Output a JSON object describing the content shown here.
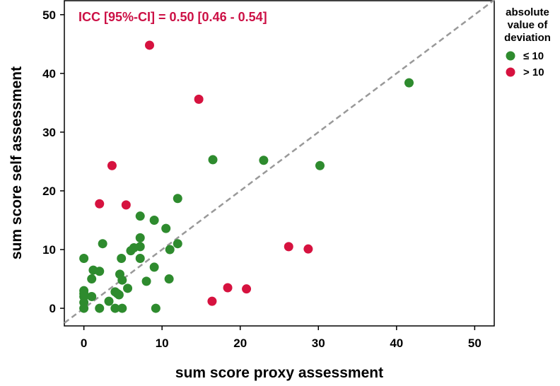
{
  "chart_data": {
    "type": "scatter",
    "xlabel": "sum score proxy assessment",
    "ylabel": "sum score self assessment",
    "xlim": [
      -2.5,
      52.5
    ],
    "ylim": [
      -3,
      52.5
    ],
    "xticks": [
      0,
      10,
      20,
      30,
      40,
      50
    ],
    "yticks": [
      0,
      10,
      20,
      30,
      40,
      50
    ],
    "grid": false,
    "reference_line": {
      "style": "dashed",
      "slope": 1,
      "intercept": 0,
      "color": "#999999"
    },
    "annotation": {
      "text": "ICC [95%-CI] = 0.50 [0.46 - 0.54]",
      "color": "#cc1045"
    },
    "legend": {
      "title_lines": [
        "absolute",
        "value of",
        "deviation"
      ],
      "placement": "right",
      "items": [
        {
          "label": "≤ 10",
          "color": "#2e8b2e"
        },
        {
          "label": "> 10",
          "color": "#d6123f"
        }
      ]
    },
    "series": [
      {
        "name": "≤ 10",
        "color": "#2e8b2e",
        "points": [
          [
            0,
            8.5
          ],
          [
            0,
            3
          ],
          [
            0,
            2.5
          ],
          [
            0,
            2
          ],
          [
            0,
            1
          ],
          [
            0,
            0
          ],
          [
            1,
            2
          ],
          [
            1,
            5
          ],
          [
            1.2,
            6.5
          ],
          [
            2,
            6.3
          ],
          [
            2,
            0
          ],
          [
            2.4,
            11
          ],
          [
            3.2,
            1.2
          ],
          [
            4,
            2.8
          ],
          [
            4,
            0
          ],
          [
            4.3,
            2.5
          ],
          [
            4.5,
            2.3
          ],
          [
            4.6,
            5.8
          ],
          [
            4.8,
            8.5
          ],
          [
            4.9,
            4.8
          ],
          [
            4.9,
            0
          ],
          [
            5.6,
            3.4
          ],
          [
            6,
            9.8
          ],
          [
            6.4,
            10.3
          ],
          [
            7.2,
            15.7
          ],
          [
            7.2,
            12
          ],
          [
            7.2,
            10.5
          ],
          [
            7.2,
            8.5
          ],
          [
            8,
            4.6
          ],
          [
            9,
            15
          ],
          [
            9,
            7
          ],
          [
            9.2,
            0
          ],
          [
            10.5,
            13.6
          ],
          [
            10.9,
            5
          ],
          [
            11,
            10
          ],
          [
            12,
            18.7
          ],
          [
            12,
            11
          ],
          [
            16.5,
            25.3
          ],
          [
            23,
            25.2
          ],
          [
            30.2,
            24.3
          ],
          [
            41.6,
            38.4
          ]
        ]
      },
      {
        "name": "> 10",
        "color": "#d6123f",
        "points": [
          [
            2,
            17.8
          ],
          [
            3.6,
            24.3
          ],
          [
            5.4,
            17.6
          ],
          [
            8.4,
            44.8
          ],
          [
            14.7,
            35.6
          ],
          [
            16.4,
            1.2
          ],
          [
            18.4,
            3.5
          ],
          [
            20.8,
            3.3
          ],
          [
            26.2,
            10.5
          ],
          [
            28.7,
            10.1
          ]
        ]
      }
    ]
  }
}
